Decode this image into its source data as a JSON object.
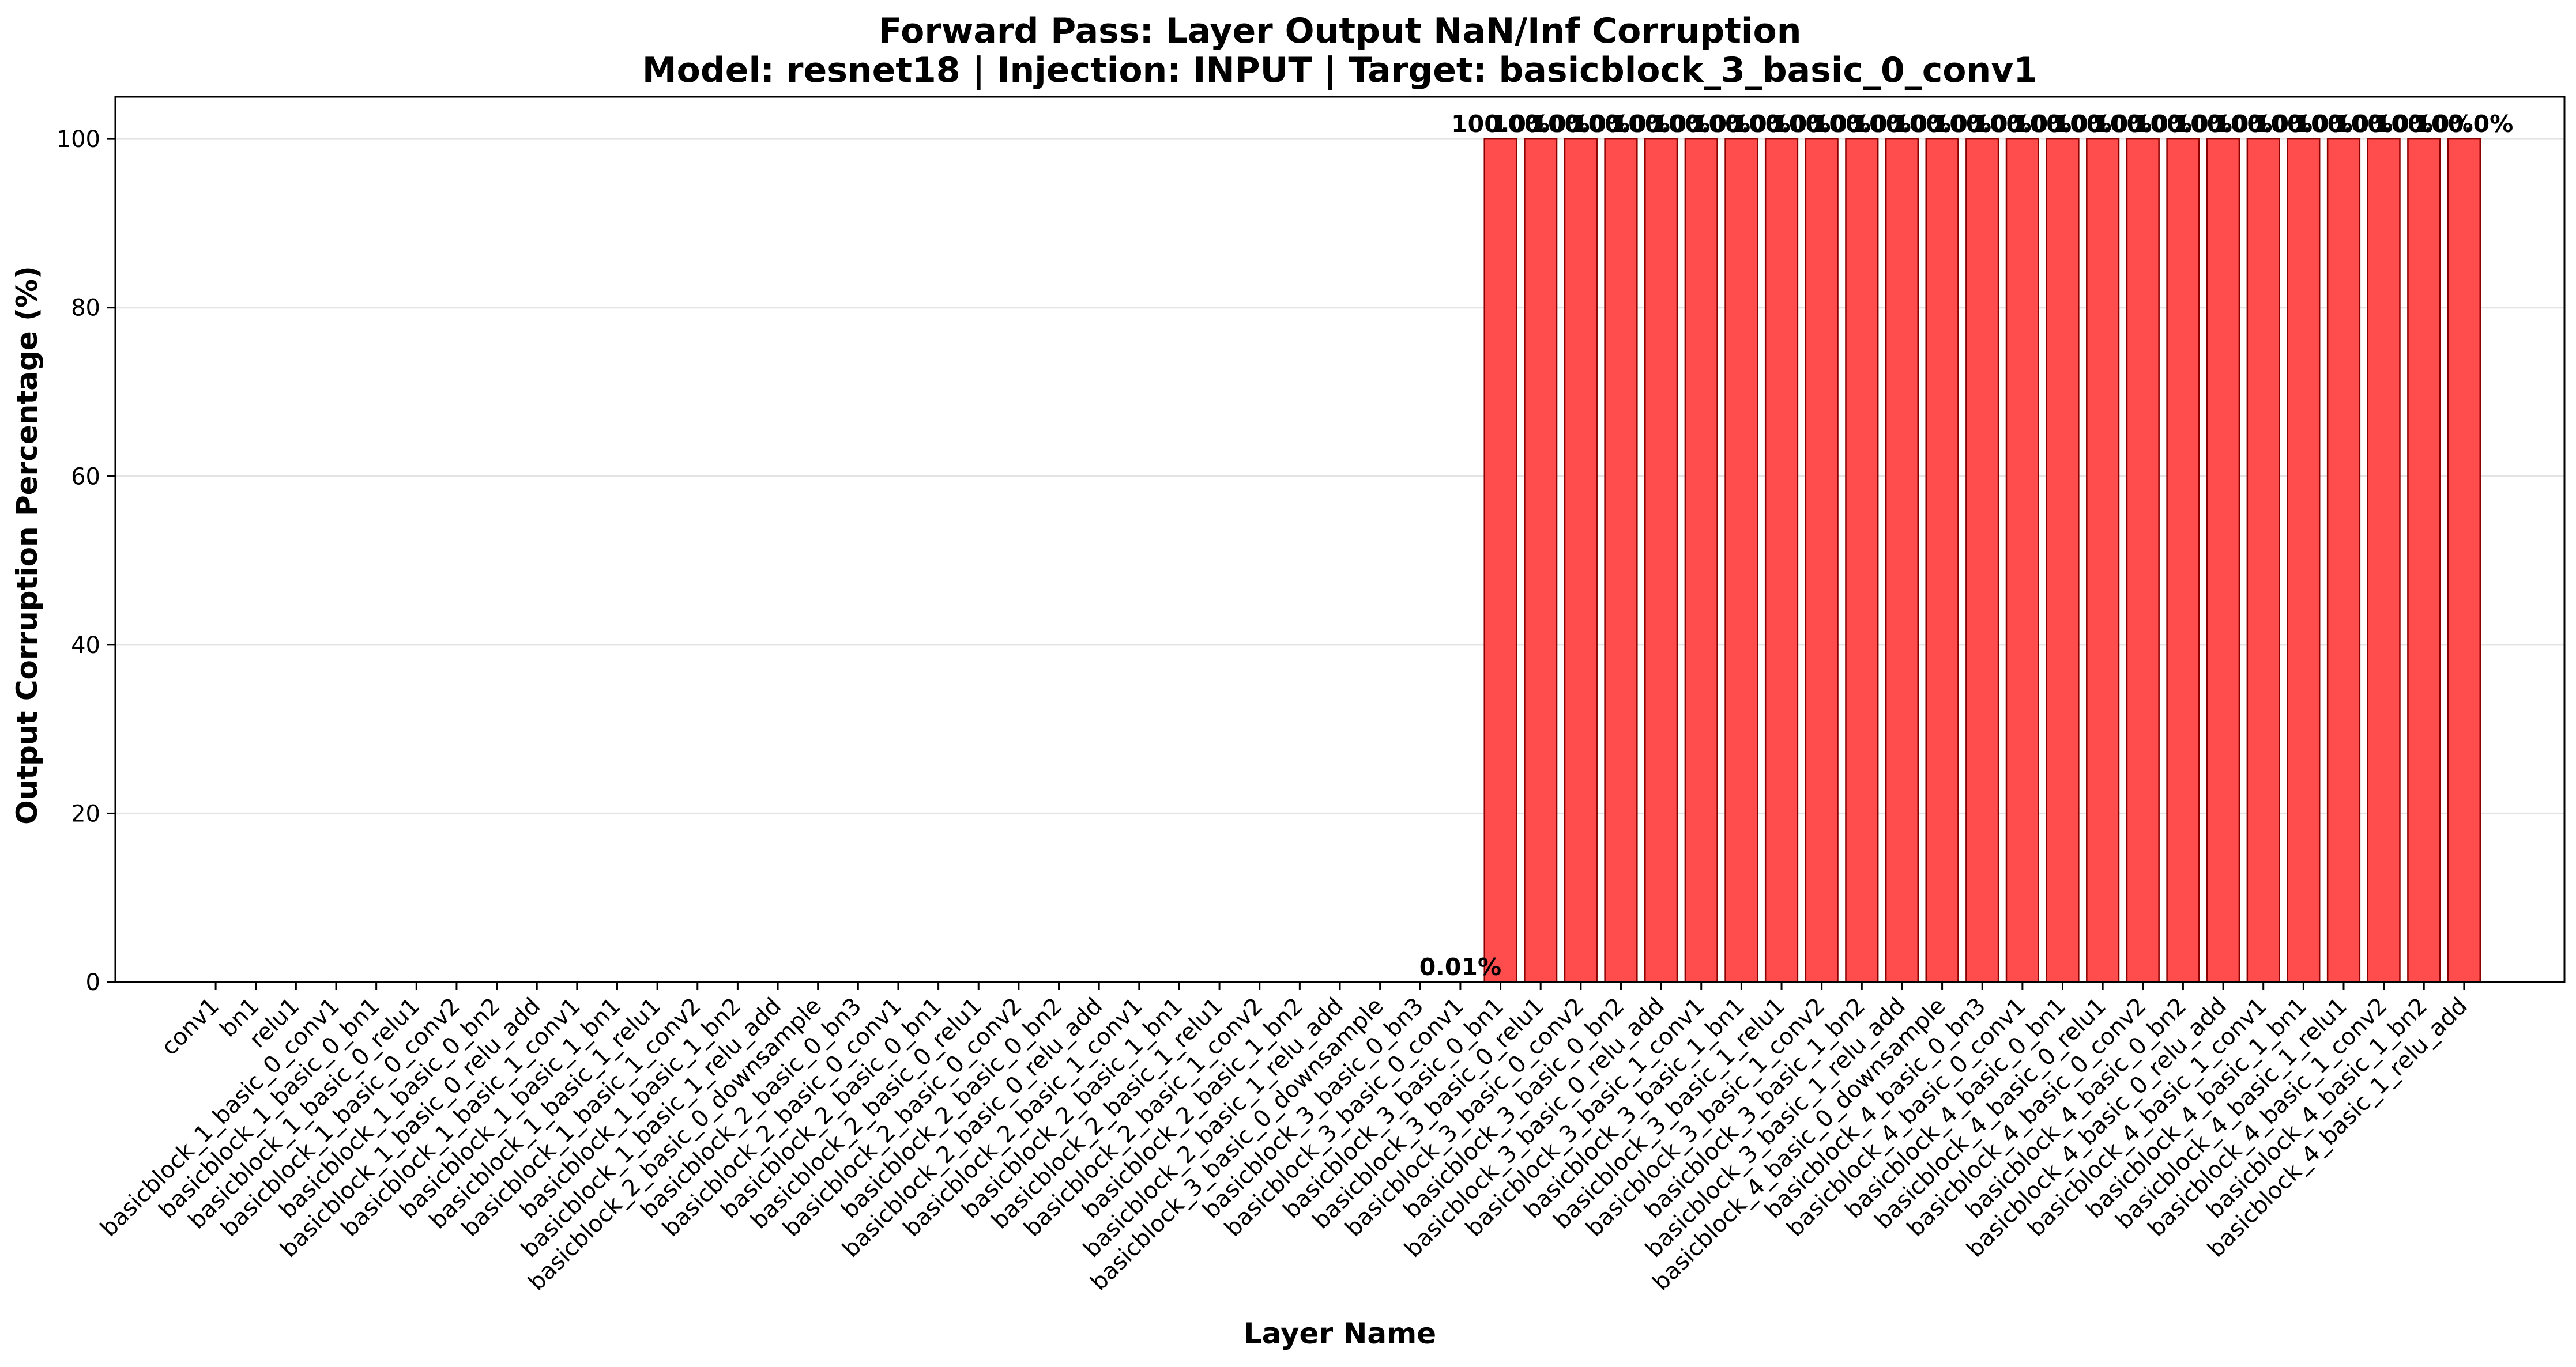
{
  "chart_data": {
    "type": "bar",
    "title": "Forward Pass: Layer Output NaN/Inf Corruption",
    "subtitle": "Model: resnet18 | Injection: INPUT | Target: basicblock_3_basic_0_conv1",
    "xlabel": "Layer Name",
    "ylabel": "Output Corruption Percentage (%)",
    "ylim": [
      0,
      105
    ],
    "yticks": [
      "0",
      "20",
      "40",
      "60",
      "80",
      "100"
    ],
    "grid": "y",
    "bar_color": "#ff4c4c",
    "bar_edge_color": "#8b0000",
    "categories": [
      "conv1",
      "bn1",
      "relu1",
      "basicblock_1_basic_0_conv1",
      "basicblock_1_basic_0_bn1",
      "basicblock_1_basic_0_relu1",
      "basicblock_1_basic_0_conv2",
      "basicblock_1_basic_0_bn2",
      "basicblock_1_basic_0_relu_add",
      "basicblock_1_basic_1_conv1",
      "basicblock_1_basic_1_bn1",
      "basicblock_1_basic_1_relu1",
      "basicblock_1_basic_1_conv2",
      "basicblock_1_basic_1_bn2",
      "basicblock_1_basic_1_relu_add",
      "basicblock_2_basic_0_downsample",
      "basicblock_2_basic_0_bn3",
      "basicblock_2_basic_0_conv1",
      "basicblock_2_basic_0_bn1",
      "basicblock_2_basic_0_relu1",
      "basicblock_2_basic_0_conv2",
      "basicblock_2_basic_0_bn2",
      "basicblock_2_basic_0_relu_add",
      "basicblock_2_basic_1_conv1",
      "basicblock_2_basic_1_bn1",
      "basicblock_2_basic_1_relu1",
      "basicblock_2_basic_1_conv2",
      "basicblock_2_basic_1_bn2",
      "basicblock_2_basic_1_relu_add",
      "basicblock_3_basic_0_downsample",
      "basicblock_3_basic_0_bn3",
      "basicblock_3_basic_0_conv1",
      "basicblock_3_basic_0_bn1",
      "basicblock_3_basic_0_relu1",
      "basicblock_3_basic_0_conv2",
      "basicblock_3_basic_0_bn2",
      "basicblock_3_basic_0_relu_add",
      "basicblock_3_basic_1_conv1",
      "basicblock_3_basic_1_bn1",
      "basicblock_3_basic_1_relu1",
      "basicblock_3_basic_1_conv2",
      "basicblock_3_basic_1_bn2",
      "basicblock_3_basic_1_relu_add",
      "basicblock_4_basic_0_downsample",
      "basicblock_4_basic_0_bn3",
      "basicblock_4_basic_0_conv1",
      "basicblock_4_basic_0_bn1",
      "basicblock_4_basic_0_relu1",
      "basicblock_4_basic_0_conv2",
      "basicblock_4_basic_0_bn2",
      "basicblock_4_basic_0_relu_add",
      "basicblock_4_basic_1_conv1",
      "basicblock_4_basic_1_bn1",
      "basicblock_4_basic_1_relu1",
      "basicblock_4_basic_1_conv2",
      "basicblock_4_basic_1_bn2",
      "basicblock_4_basic_1_relu_add"
    ],
    "values": [
      0,
      0,
      0,
      0,
      0,
      0,
      0,
      0,
      0,
      0,
      0,
      0,
      0,
      0,
      0,
      0,
      0,
      0,
      0,
      0,
      0,
      0,
      0,
      0,
      0,
      0,
      0,
      0,
      0,
      0,
      0,
      0.01,
      100,
      100,
      100,
      100,
      100,
      100,
      100,
      100,
      100,
      100,
      100,
      100,
      100,
      100,
      100,
      100,
      100,
      100,
      100,
      100,
      100,
      100,
      100,
      100,
      100
    ],
    "data_labels": [
      "",
      "",
      "",
      "",
      "",
      "",
      "",
      "",
      "",
      "",
      "",
      "",
      "",
      "",
      "",
      "",
      "",
      "",
      "",
      "",
      "",
      "",
      "",
      "",
      "",
      "",
      "",
      "",
      "",
      "",
      "",
      "0.01%",
      "100.0%",
      "100.0%",
      "100.0%",
      "100.0%",
      "100.0%",
      "100.0%",
      "100.0%",
      "100.0%",
      "100.0%",
      "100.0%",
      "100.0%",
      "100.0%",
      "100.0%",
      "100.0%",
      "100.0%",
      "100.0%",
      "100.0%",
      "100.0%",
      "100.0%",
      "100.0%",
      "100.0%",
      "100.0%",
      "100.0%",
      "100.0%",
      "100.0%"
    ]
  }
}
